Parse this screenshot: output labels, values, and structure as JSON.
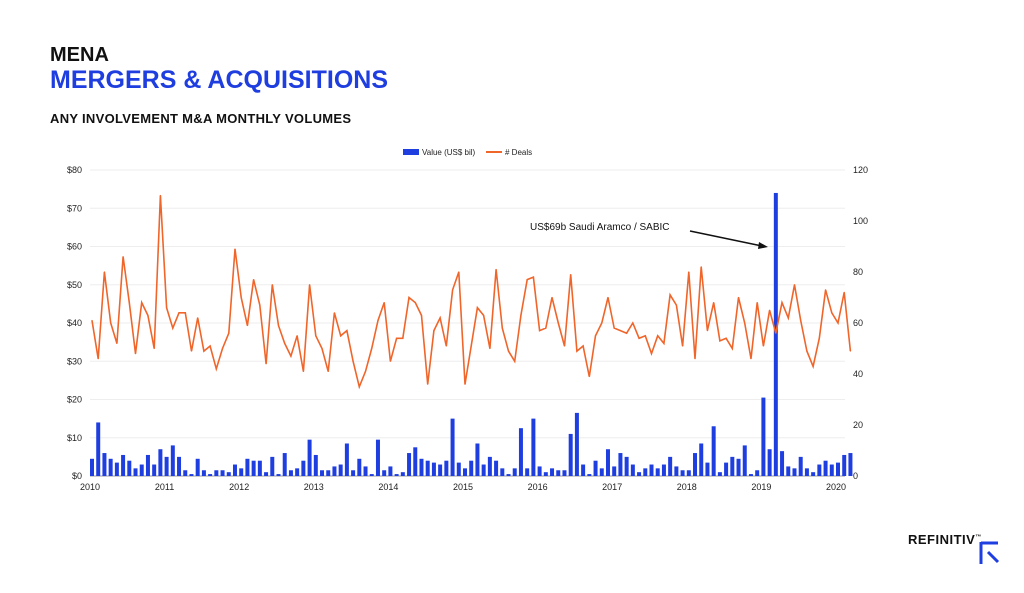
{
  "header": {
    "region": "MENA",
    "title": "MERGERS & ACQUISITIONS",
    "subtitle": "ANY INVOLVEMENT M&A MONTHLY VOLUMES"
  },
  "logo": {
    "text": "REFINITIV",
    "trademark": "™"
  },
  "colors": {
    "bar": "#1f3ee0",
    "line": "#f0652a",
    "title": "#1f3ee0"
  },
  "chart_data": {
    "type": "bar+line",
    "legend": [
      "Value (US$ bil)",
      "# Deals"
    ],
    "legend_position": "top-center",
    "annotation": "US$69b Saudi Aramco / SABIC",
    "x_ticks": [
      "2010",
      "2011",
      "2012",
      "2013",
      "2014",
      "2015",
      "2016",
      "2017",
      "2018",
      "2019",
      "2020"
    ],
    "y_left": {
      "ticks": [
        "$0",
        "$10",
        "$20",
        "$30",
        "$40",
        "$50",
        "$60",
        "$70",
        "$80"
      ],
      "range": [
        0,
        80
      ]
    },
    "y_right": {
      "ticks": [
        "0",
        "20",
        "40",
        "60",
        "80",
        "100",
        "120"
      ],
      "range": [
        0,
        120
      ]
    },
    "start": "2010-01",
    "frequency": "monthly",
    "grid": true,
    "series": [
      {
        "name": "Value (US$ bil)",
        "axis": "left",
        "type": "bar",
        "values": [
          4.5,
          14,
          6,
          4.5,
          3.5,
          5.5,
          4,
          2,
          3,
          5.5,
          3,
          7,
          5,
          8,
          5,
          1.5,
          0.5,
          4.5,
          1.5,
          0.5,
          1.5,
          1.5,
          1,
          3,
          2,
          4.5,
          4,
          4,
          1,
          5,
          0.5,
          6,
          1.5,
          2,
          4,
          9.5,
          5.5,
          1.5,
          1.5,
          2.5,
          3,
          8.5,
          1.5,
          4.5,
          2.5,
          0.5,
          9.5,
          1.5,
          2.5,
          0.5,
          1,
          6,
          7.5,
          4.5,
          4,
          3.5,
          3,
          4,
          15,
          3.5,
          2,
          4,
          8.5,
          3,
          5,
          4,
          2,
          0.5,
          2,
          12.5,
          2,
          15,
          2.5,
          1,
          2,
          1.5,
          1.5,
          11,
          16.5,
          3,
          0.5,
          4,
          2,
          7,
          2.5,
          6,
          5,
          3,
          1,
          2,
          3,
          2,
          3,
          5,
          2.5,
          1.5,
          1.5,
          6,
          8.5,
          3.5,
          13,
          1,
          3.5,
          5,
          4.5,
          8,
          0.5,
          1.5,
          20.5,
          7,
          74,
          6.5,
          2.5,
          2,
          5,
          2,
          1,
          3,
          4,
          3,
          3.5,
          5.5,
          6
        ]
      },
      {
        "name": "# Deals",
        "axis": "right",
        "type": "line",
        "values": [
          61,
          46,
          80,
          60,
          52,
          86,
          68,
          48,
          68,
          63,
          50,
          110,
          66,
          58,
          64,
          64,
          49,
          62,
          49,
          51,
          42,
          50,
          56,
          89,
          70,
          59,
          77,
          67,
          44,
          75,
          59,
          52,
          47,
          55,
          41,
          75,
          55,
          50,
          41,
          64,
          55,
          57,
          45,
          35,
          41,
          50,
          61,
          68,
          45,
          54,
          54,
          70,
          68,
          63,
          36,
          57,
          62,
          51,
          73,
          80,
          36,
          51,
          66,
          63,
          50,
          81,
          58,
          49,
          45,
          63,
          77,
          78,
          57,
          58,
          70,
          60,
          51,
          79,
          49,
          51,
          39,
          55,
          60,
          70,
          58,
          57,
          56,
          60,
          54,
          55,
          48,
          55,
          52,
          71,
          67,
          51,
          80,
          46,
          82,
          57,
          68,
          53,
          54,
          50,
          70,
          60,
          46,
          68,
          51,
          65,
          56,
          68,
          62,
          75,
          61,
          49,
          43,
          54,
          73,
          64,
          60,
          72,
          49
        ]
      }
    ]
  }
}
